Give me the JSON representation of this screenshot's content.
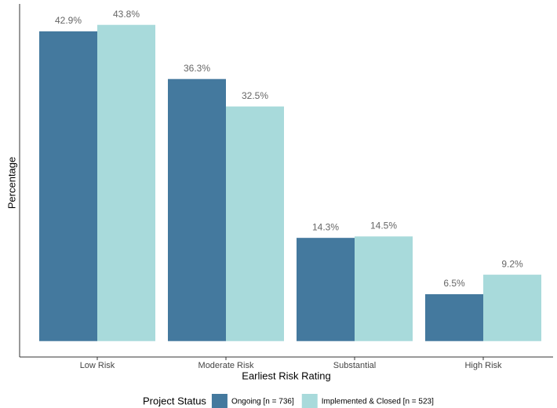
{
  "chart_data": {
    "type": "bar",
    "x_label": "Earliest Risk Rating",
    "y_label": "Percentage",
    "categories": [
      "Low Risk",
      "Moderate Risk",
      "Substantial",
      "High Risk"
    ],
    "series": [
      {
        "name": "Ongoing [n = 736]",
        "color": "#44799e",
        "values": [
          42.9,
          36.3,
          14.3,
          6.5
        ],
        "value_labels": [
          "42.9%",
          "36.3%",
          "14.3%",
          "6.5%"
        ]
      },
      {
        "name": "Implemented & Closed [n = 523]",
        "color": "#a8dadb",
        "values": [
          43.8,
          32.5,
          14.5,
          9.2
        ],
        "value_labels": [
          "43.8%",
          "32.5%",
          "14.5%",
          "9.2%"
        ]
      }
    ],
    "ylim": [
      -2.2,
      46.7
    ],
    "legend_title": "Project Status",
    "legend_position": "bottom"
  }
}
